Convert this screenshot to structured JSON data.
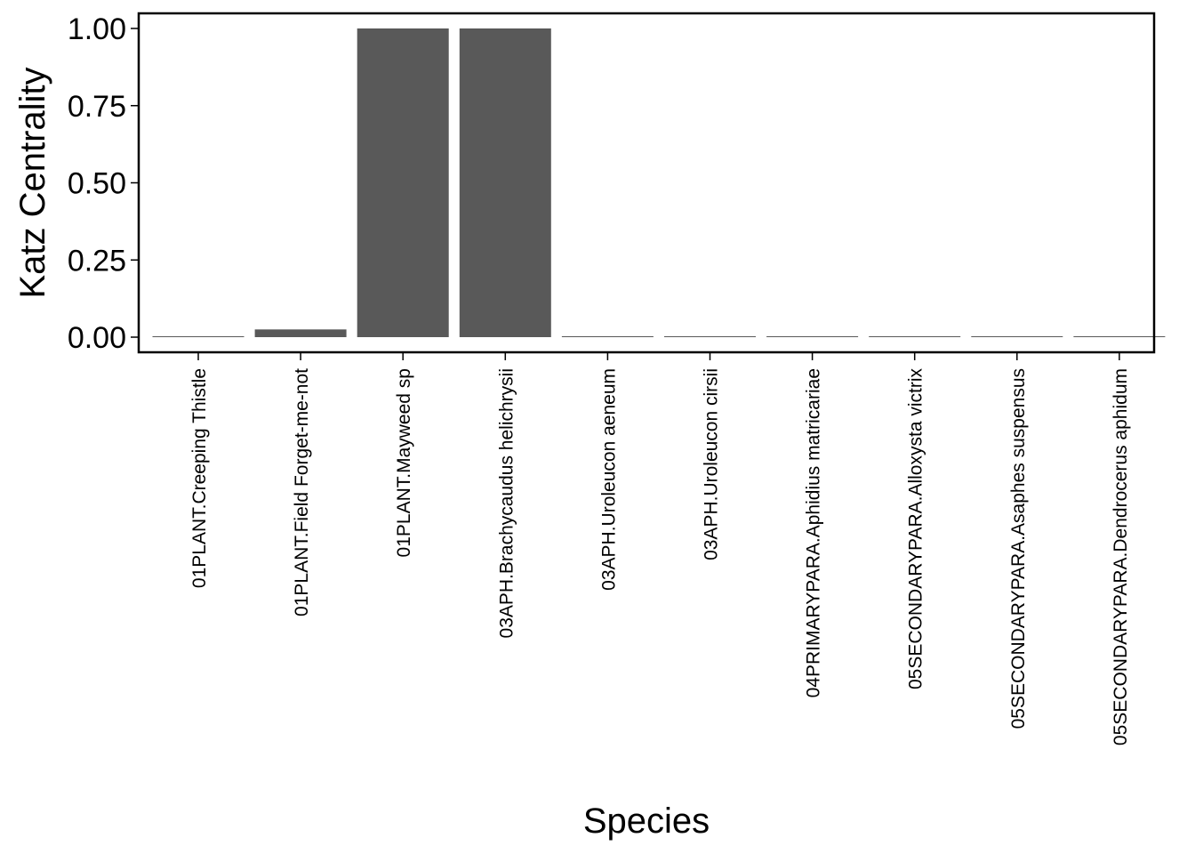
{
  "chart_data": {
    "type": "bar",
    "title": "",
    "xlabel": "Species",
    "ylabel": "Katz Centrality",
    "ylim": [
      0,
      1.05
    ],
    "yticks": [
      "0.00",
      "0.25",
      "0.50",
      "0.75",
      "1.00"
    ],
    "grid": false,
    "legend": "none",
    "bar_color": "#595959",
    "categories": [
      "01PLANT.Creeping Thistle",
      "01PLANT.Field Forget-me-not",
      "01PLANT.Mayweed sp",
      "03APH.Brachycaudus helichrysii",
      "03APH.Uroleucon aeneum",
      "03APH.Uroleucon cirsii",
      "04PRIMARYPARA.Aphidius matricariae",
      "05SECONDARYPARA.Alloxysta victrix",
      "05SECONDARYPARA.Asaphes suspensus",
      "05SECONDARYPARA.Dendrocerus aphidum"
    ],
    "values": [
      0.002,
      0.025,
      1.0,
      1.0,
      0.003,
      0.001,
      0.0,
      0.0,
      0.001,
      0.0
    ]
  }
}
